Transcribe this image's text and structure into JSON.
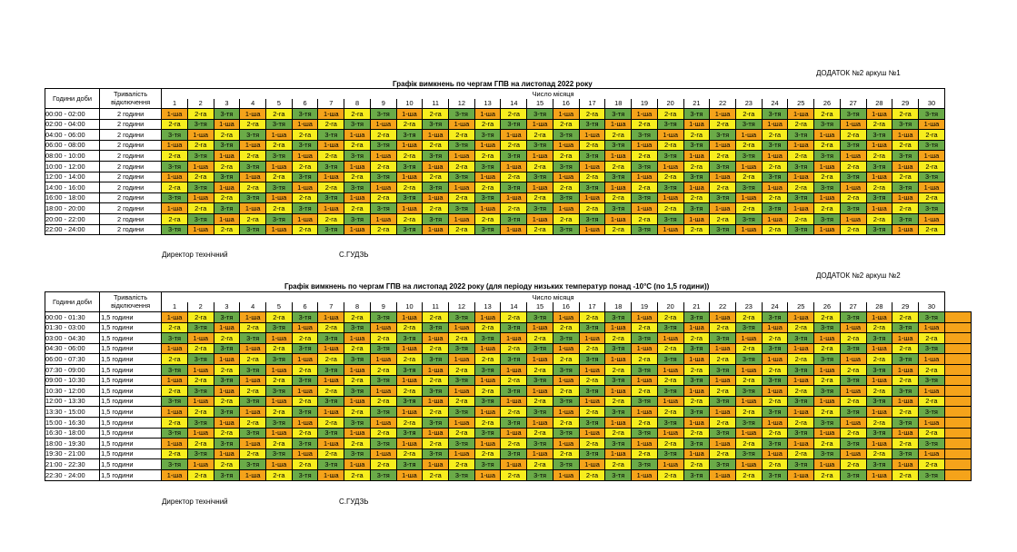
{
  "colors": {
    "q1": "#f5a31a",
    "q2": "#f7ee1e",
    "q3": "#6aab48"
  },
  "annex1": "ДОДАТОК №2 аркуш №1",
  "annex2": "ДОДАТОК №2 аркуш №2",
  "table1": {
    "title": "Графік вимкнень по чергам ГПВ на листопад 2022 року",
    "hdr_time": "Години доби",
    "hdr_dur_1": "Тривалість",
    "hdr_dur_2": "відключення",
    "hdr_month": "Число місяця",
    "days": [
      "1",
      "2",
      "3",
      "4",
      "5",
      "6",
      "7",
      "8",
      "9",
      "10",
      "11",
      "12",
      "13",
      "14",
      "15",
      "16",
      "17",
      "18",
      "19",
      "20",
      "21",
      "22",
      "23",
      "24",
      "25",
      "26",
      "27",
      "28",
      "29",
      "30"
    ],
    "rows": [
      {
        "time": "00:00 - 02:00",
        "dur": "2 години",
        "s": "123123123123123123123123123123"
      },
      {
        "time": "02:00 - 04:00",
        "dur": "2 години",
        "s": "231231231231231231231231231231"
      },
      {
        "time": "04:00 - 06:00",
        "dur": "2 години",
        "s": "312312312312312312312312312312"
      },
      {
        "time": "06:00 - 08:00",
        "dur": "2 години",
        "s": "123123123123123123123123123123"
      },
      {
        "time": "08:00 - 10:00",
        "dur": "2 години",
        "s": "231231231231231231231231231231"
      },
      {
        "time": "10:00 - 12:00",
        "dur": "2 години",
        "s": "312312312312312312312312312312"
      },
      {
        "time": "12:00 - 14:00",
        "dur": "2 години",
        "s": "123123123123123123123123123123"
      },
      {
        "time": "14:00 - 16:00",
        "dur": "2 години",
        "s": "231231231231231231231231231231"
      },
      {
        "time": "16:00 - 18:00",
        "dur": "2 години",
        "s": "312312312312312312312312312312"
      },
      {
        "time": "18:00 - 20:00",
        "dur": "2 години",
        "s": "123123123123123123123123123123"
      },
      {
        "time": "20:00 - 22:00",
        "dur": "2 години",
        "s": "231231231231231231231231231231"
      },
      {
        "time": "22:00 - 24:00",
        "dur": "2 години",
        "s": "312312312312312312312312312312"
      }
    ]
  },
  "table2": {
    "title": "Графік вимкнень по чергам ГПВ на листопад 2022 року (для періоду низьких температур понад -10°С (по 1,5 години))",
    "hdr_time": "Години доби",
    "hdr_dur_1": "Тривалість",
    "hdr_dur_2": "відключення",
    "hdr_month": "Число місяця",
    "days": [
      "1",
      "2",
      "3",
      "4",
      "5",
      "6",
      "7",
      "8",
      "9",
      "10",
      "11",
      "12",
      "13",
      "14",
      "15",
      "16",
      "17",
      "18",
      "19",
      "20",
      "21",
      "22",
      "23",
      "24",
      "25",
      "26",
      "27",
      "28",
      "29",
      "30"
    ],
    "rows": [
      {
        "time": "00:00 - 01:30",
        "dur": "1,5 години",
        "s": "123123123123123123123123123123"
      },
      {
        "time": "01:30 - 03:00",
        "dur": "1,5 години",
        "s": "231231231231231231231231231231"
      },
      {
        "time": "03:00 - 04:30",
        "dur": "1,5 години",
        "s": "312312312312312312312312312312"
      },
      {
        "time": "04:30 - 06:00",
        "dur": "1,5 години",
        "s": "123123123123123123123123123123"
      },
      {
        "time": "06:00 - 07:30",
        "dur": "1,5 години",
        "s": "231231231231231231231231231231"
      },
      {
        "time": "07:30 - 09:00",
        "dur": "1,5 години",
        "s": "312312312312312312312312312312"
      },
      {
        "time": "09:00 - 10:30",
        "dur": "1,5 години",
        "s": "123123123123123123123123123123"
      },
      {
        "time": "10:30 - 12:00",
        "dur": "1,5 години",
        "s": "231231231231231231231231231231"
      },
      {
        "time": "12:00 - 13:30",
        "dur": "1,5 години",
        "s": "312312312312312312312312312312"
      },
      {
        "time": "13:30 - 15:00",
        "dur": "1,5 години",
        "s": "123123123123123123123123123123"
      },
      {
        "time": "15:00 - 16:30",
        "dur": "1,5 години",
        "s": "231231231231231231231231231231"
      },
      {
        "time": "16:30 - 18:00",
        "dur": "1,5 години",
        "s": "312312312312312312312312312312"
      },
      {
        "time": "18:00 - 19:30",
        "dur": "1,5 години",
        "s": "123123123123123123123123123123"
      },
      {
        "time": "19:30 - 21:00",
        "dur": "1,5 години",
        "s": "231231231231231231231231231231"
      },
      {
        "time": "21:00 - 22:30",
        "dur": "1,5 години",
        "s": "312312312312312312312312312312"
      },
      {
        "time": "22:30 - 24:00",
        "dur": "1,5 години",
        "s": "123123123123123123123123123123"
      }
    ]
  },
  "queue_labels": {
    "1": "1-ша",
    "2": "2-га",
    "3": "3-тя"
  },
  "signature": {
    "position": "Директор технічний",
    "name": "С.ГУДЗЬ"
  }
}
